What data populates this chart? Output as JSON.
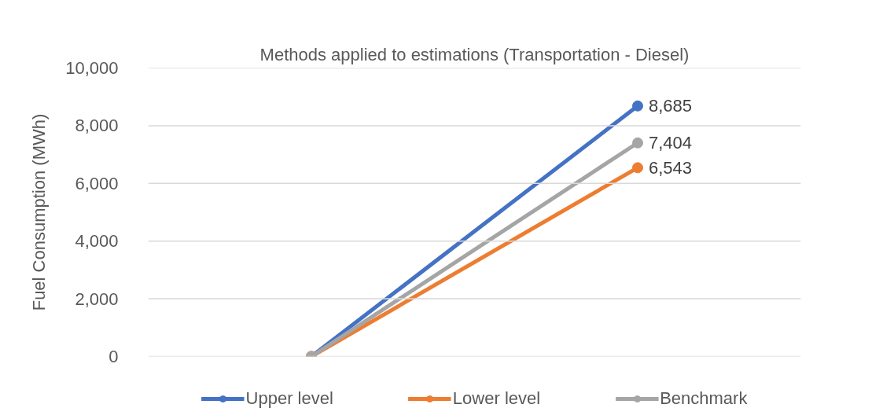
{
  "chart_data": {
    "type": "line",
    "title": "Methods applied to estimations (Transportation - Diesel)",
    "ylabel": "Fuel Consumption (MWh)",
    "categories": [
      null,
      null
    ],
    "series": [
      {
        "name": "Upper level",
        "color": "#4472c4",
        "values": [
          0,
          8685
        ],
        "value_labels": [
          null,
          "8,685"
        ]
      },
      {
        "name": "Lower level",
        "color": "#ed7d31",
        "values": [
          0,
          6543
        ],
        "value_labels": [
          null,
          "6,543"
        ]
      },
      {
        "name": "Benchmark",
        "color": "#a5a5a5",
        "values": [
          0,
          7404
        ],
        "value_labels": [
          null,
          "7,404"
        ]
      }
    ],
    "ylim": [
      0,
      10000
    ],
    "yticks": [
      0,
      {
        "value": 2000,
        "label": "2,000"
      },
      {
        "value": 4000,
        "label": "4,000"
      },
      {
        "value": 6000,
        "label": "6,000"
      },
      {
        "value": 8000,
        "label": "8,000"
      },
      {
        "value": 10000,
        "label": "10,000"
      }
    ],
    "grid": "y",
    "legend": "bottom",
    "marker": "circle",
    "tick_labels": "y"
  }
}
